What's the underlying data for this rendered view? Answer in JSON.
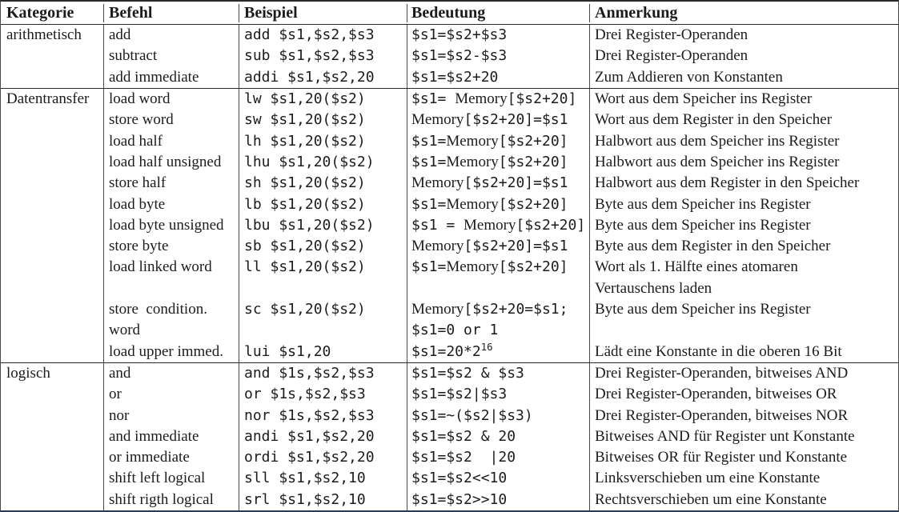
{
  "colors": {
    "text": "#1c1c1c",
    "horizontal_rule": "#2a2a2a",
    "vertical_rule": "#4a4a4a",
    "bottom_rule": "#2b3a55",
    "background": "#ffffff"
  },
  "table": {
    "headers": [
      "Kategorie",
      "Befehl",
      "Beispiel",
      "Bedeutung",
      "Anmerkung"
    ],
    "groups": [
      {
        "kategorie": "arithmetisch",
        "rows": [
          {
            "befehl": "add",
            "beispiel": "add $s1,$s2,$s3",
            "bedeutung": "$s1=$s2+$s3",
            "anmerkung": "Drei Register-Operanden"
          },
          {
            "befehl": "subtract",
            "beispiel": "sub $s1,$s2,$s3",
            "bedeutung": "$s1=$s2-$s3",
            "anmerkung": "Drei Register-Operanden"
          },
          {
            "befehl": "add immediate",
            "beispiel": "addi $s1,$s2,20",
            "bedeutung": "$s1=$s2+20",
            "anmerkung": "Zum Addieren von Konstanten"
          }
        ]
      },
      {
        "kategorie": "Datentransfer",
        "rows": [
          {
            "befehl": "load word",
            "beispiel": "lw $s1,20($s2)",
            "bedeutung": "$s1= Memory[$s2+20]",
            "anmerkung": "Wort aus dem Speicher ins Register"
          },
          {
            "befehl": "store word",
            "beispiel": "sw $s1,20($s2)",
            "bedeutung": "Memory[$s2+20]=$s1",
            "anmerkung": "Wort aus dem Register in den Speicher"
          },
          {
            "befehl": "load half",
            "beispiel": "lh $s1,20($s2)",
            "bedeutung": "$s1=Memory[$s2+20]",
            "anmerkung": "Halbwort aus dem Speicher ins Register"
          },
          {
            "befehl": "load half unsigned",
            "beispiel": "lhu $s1,20($s2)",
            "bedeutung": "$s1=Memory[$s2+20]",
            "anmerkung": "Halbwort aus dem Speicher ins Register"
          },
          {
            "befehl": "store half",
            "beispiel": "sh $s1,20($s2)",
            "bedeutung": "Memory[$s2+20]=$s1",
            "anmerkung": "Halbwort aus dem Register in den Speicher"
          },
          {
            "befehl": "load byte",
            "beispiel": "lb $s1,20($s2)",
            "bedeutung": "$s1=Memory[$s2+20]",
            "anmerkung": "Byte aus dem Speicher ins Register"
          },
          {
            "befehl": "load byte unsigned",
            "beispiel": "lbu $s1,20($s2)",
            "bedeutung": "$s1 = Memory[$s2+20]",
            "anmerkung": "Byte aus dem Speicher ins Register"
          },
          {
            "befehl": "store byte",
            "beispiel": "sb $s1,20($s2)",
            "bedeutung": "Memory[$s2+20]=$s1",
            "anmerkung": "Byte aus dem Register in den Speicher"
          },
          {
            "befehl": "load linked word",
            "beispiel": "ll $s1,20($s2)",
            "bedeutung": "$s1=Memory[$s2+20]",
            "anmerkung": "Wort als 1. Hälfte eines atomaren"
          },
          {
            "befehl": "",
            "beispiel": "",
            "bedeutung": "",
            "anmerkung": "Vertauschens laden"
          },
          {
            "befehl": "store  condition.",
            "beispiel": "sc $s1,20($s2)",
            "bedeutung": "Memory[$s2+20=$s1;",
            "anmerkung": "Byte aus dem Speicher ins Register"
          },
          {
            "befehl": "word",
            "beispiel": "",
            "bedeutung": "$s1=0 or 1",
            "anmerkung": ""
          },
          {
            "befehl": "load upper immed.",
            "beispiel": "lui $s1,20",
            "bedeutung": "$s1=20*2^16",
            "anmerkung": "Lädt eine Konstante in die oberen 16 Bit"
          }
        ]
      },
      {
        "kategorie": "logisch",
        "rows": [
          {
            "befehl": "and",
            "beispiel": "and $1s,$s2,$s3",
            "bedeutung": "$s1=$s2 & $s3",
            "anmerkung": "Drei Register-Operanden, bitweises AND"
          },
          {
            "befehl": "or",
            "beispiel": "or $1s,$s2,$s3",
            "bedeutung": "$s1=$s2|$s3",
            "anmerkung": "Drei Register-Operanden, bitweises OR"
          },
          {
            "befehl": "nor",
            "beispiel": "nor $1s,$s2,$s3",
            "bedeutung": "$s1=~($s2|$s3)",
            "anmerkung": "Drei Register-Operanden, bitweises NOR"
          },
          {
            "befehl": "and immediate",
            "beispiel": "andi $s1,$s2,20",
            "bedeutung": "$s1=$s2 & 20",
            "anmerkung": "Bitweises AND für Register unt Konstante"
          },
          {
            "befehl": "or immediate",
            "beispiel": "ordi $s1,$s2,20",
            "bedeutung": "$s1=$s2  |20",
            "anmerkung": "Bitweises OR für Register und Konstante"
          },
          {
            "befehl": "shift left logical",
            "beispiel": "sll $s1,$s2,10",
            "bedeutung": "$s1=$s2<<10",
            "anmerkung": "Linksverschieben um eine Konstante"
          },
          {
            "befehl": "shift rigth logical",
            "beispiel": "srl $s1,$s2,10",
            "bedeutung": "$s1=$s2>>10",
            "anmerkung": "Rechtsverschieben um eine Konstante"
          }
        ]
      }
    ]
  }
}
